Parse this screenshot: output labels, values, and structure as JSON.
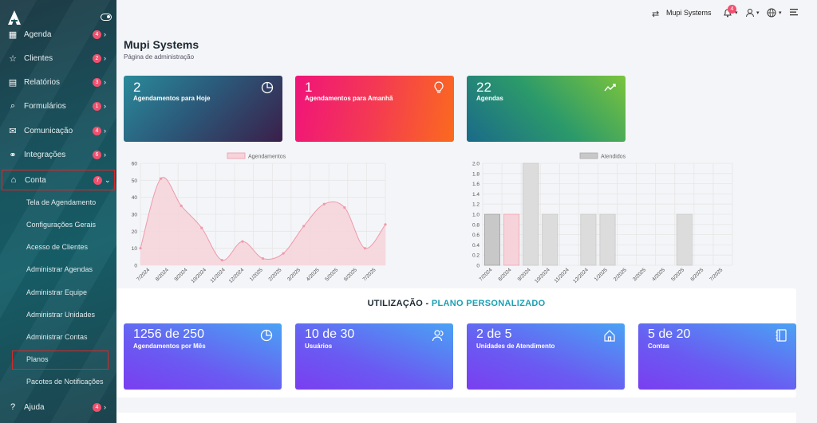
{
  "app": {
    "brand_letter": "A"
  },
  "sidebar": {
    "items": [
      {
        "label": "Agenda",
        "badge": "4",
        "icon": "calendar-icon"
      },
      {
        "label": "Clientes",
        "badge": "2",
        "icon": "star-icon"
      },
      {
        "label": "Relatórios",
        "badge": "3",
        "icon": "book-icon"
      },
      {
        "label": "Formulários",
        "badge": "1",
        "icon": "search-icon"
      },
      {
        "label": "Comunicação",
        "badge": "4",
        "icon": "envelope-icon"
      },
      {
        "label": "Integrações",
        "badge": "6",
        "icon": "link-icon"
      },
      {
        "label": "Conta",
        "badge": "7",
        "icon": "bank-icon"
      }
    ],
    "conta_submenu": [
      "Tela de Agendamento",
      "Configurações Gerais",
      "Acesso de Clientes",
      "Administrar Agendas",
      "Administrar Equipe",
      "Administrar Unidades",
      "Administrar Contas",
      "Planos",
      "Pacotes de Notificações"
    ],
    "help": {
      "label": "Ajuda",
      "badge": "4"
    }
  },
  "topbar": {
    "company": "Mupi Systems",
    "notifications": "4"
  },
  "page": {
    "title": "Mupi Systems",
    "subtitle": "Página de administração"
  },
  "stats": [
    {
      "value": "2",
      "label": "Agendamentos para Hoje",
      "icon": "pie-chart-icon"
    },
    {
      "value": "1",
      "label": "Agendamentos para Amanhã",
      "icon": "lightbulb-icon"
    },
    {
      "value": "22",
      "label": "Agendas",
      "icon": "trend-line-icon"
    }
  ],
  "chart_data": [
    {
      "type": "area",
      "legend": "Agendamentos",
      "categories": [
        "7/2024",
        "8/2024",
        "9/2024",
        "10/2024",
        "11/2024",
        "12/2024",
        "1/2025",
        "2/2025",
        "3/2025",
        "4/2025",
        "5/2025",
        "6/2025",
        "7/2025"
      ],
      "values": [
        10,
        51,
        35,
        22,
        3,
        14,
        4,
        7,
        23,
        36,
        34,
        10,
        24
      ],
      "ylim": [
        0,
        60
      ],
      "yticks": [
        "0",
        "10",
        "20",
        "30",
        "40",
        "50",
        "60"
      ],
      "colors": {
        "fill": "#f6d3da",
        "stroke": "#ee9aaa"
      },
      "grid": true,
      "legend_position": "top"
    },
    {
      "type": "bar",
      "legend": "Atendidos",
      "categories": [
        "7/2024",
        "8/2024",
        "9/2024",
        "10/2024",
        "11/2024",
        "12/2024",
        "1/2025",
        "2/2025",
        "3/2025",
        "4/2025",
        "5/2025",
        "6/2025",
        "7/2025"
      ],
      "values": [
        1,
        1,
        2,
        1,
        0,
        1,
        1,
        0,
        0,
        0,
        1,
        0,
        0
      ],
      "ylim": [
        0,
        2
      ],
      "yticks": [
        "0",
        "0.2",
        "0.4",
        "0.6",
        "0.8",
        "1.0",
        "1.2",
        "1.4",
        "1.6",
        "1.8",
        "2.0"
      ],
      "bar_colors": [
        "#c8c8c8",
        "#f6d3da",
        "#dcdcdc",
        "#dcdcdc",
        "#dcdcdc",
        "#dcdcdc",
        "#dcdcdc",
        "#dcdcdc",
        "#dcdcdc",
        "#dcdcdc",
        "#dcdcdc",
        "#dcdcdc",
        "#dcdcdc"
      ],
      "grid": true,
      "legend_position": "top"
    }
  ],
  "usage": {
    "title_prefix": "UTILIZAÇÃO - ",
    "title_plan": "PLANO PERSONALIZADO",
    "cards": [
      {
        "value": "1256 de 250",
        "label": "Agendamentos por Mês",
        "icon": "pie-chart-icon"
      },
      {
        "value": "10 de 30",
        "label": "Usuários",
        "icon": "users-icon"
      },
      {
        "value": "2 de 5",
        "label": "Unidades de Atendimento",
        "icon": "home-icon"
      },
      {
        "value": "5 de 20",
        "label": "Contas",
        "icon": "notebook-icon"
      }
    ]
  }
}
